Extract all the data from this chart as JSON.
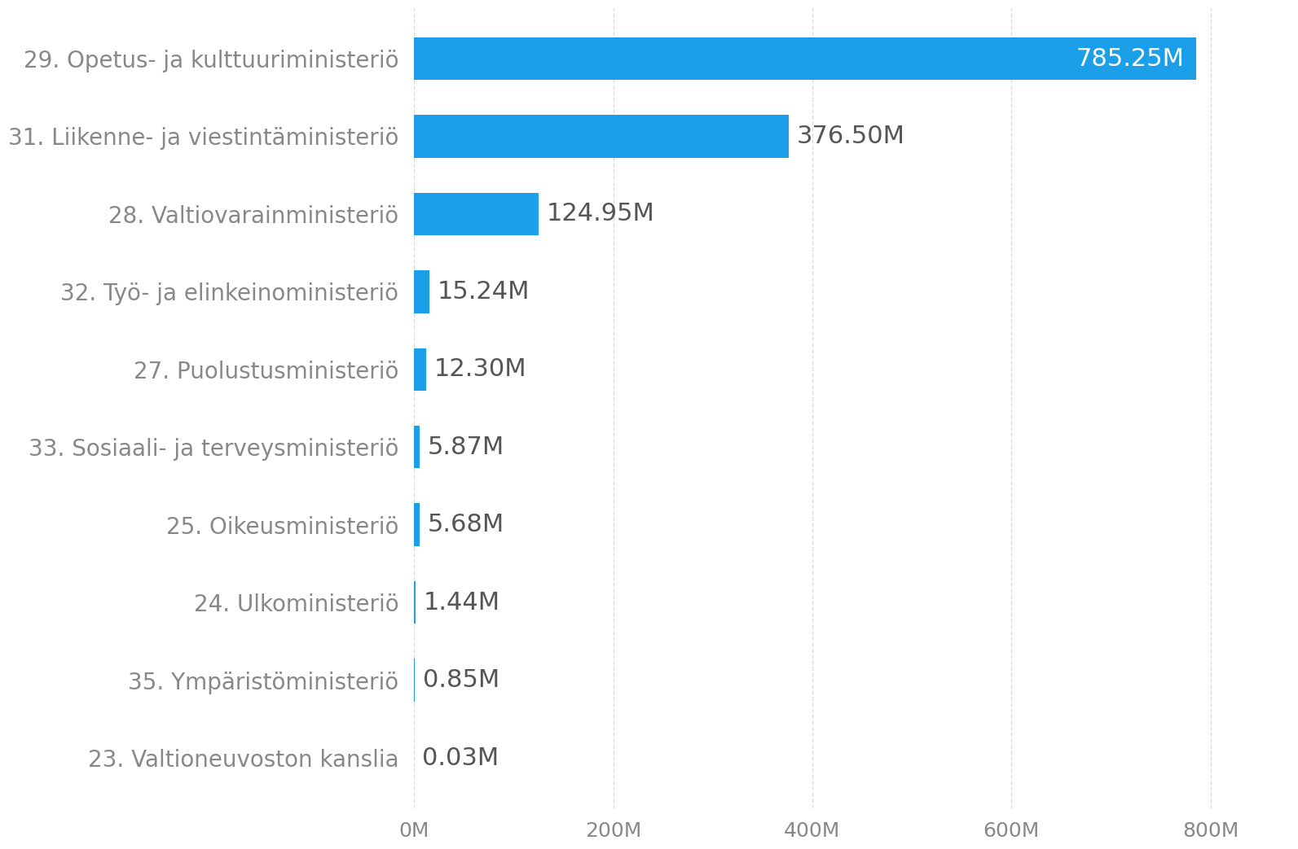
{
  "categories": [
    "29. Opetus- ja kulttuuriministeriö",
    "31. Liikenne- ja viestintäministeriö",
    "28. Valtiovarainministeriö",
    "32. Työ- ja elinkeinoministeriö",
    "27. Puolustusministeriö",
    "33. Sosiaali- ja terveysministeriö",
    "25. Oikeusministeriö",
    "24. Ulkoministeriö",
    "35. Ympäristöministeriö",
    "23. Valtioneuvoston kanslia"
  ],
  "values": [
    785.25,
    376.5,
    124.95,
    15.24,
    12.3,
    5.87,
    5.68,
    1.44,
    0.85,
    0.03
  ],
  "labels": [
    "785.25M",
    "376.50M",
    "124.95M",
    "15.24M",
    "12.30M",
    "5.87M",
    "5.68M",
    "1.44M",
    "0.85M",
    "0.03M"
  ],
  "bar_color": "#1B9FE8",
  "label_color_inside": "#ffffff",
  "label_color_outside": "#555555",
  "inside_threshold": 600,
  "background_color": "#ffffff",
  "xlim": [
    0,
    880
  ],
  "xticks": [
    0,
    200,
    400,
    600,
    800
  ],
  "xticklabels": [
    "0M",
    "200M",
    "400M",
    "600M",
    "800M"
  ],
  "tick_label_color": "#888888",
  "grid_color": "#dddddd",
  "label_fontsize": 22,
  "category_fontsize": 20,
  "xtick_fontsize": 18,
  "bar_height": 0.55
}
